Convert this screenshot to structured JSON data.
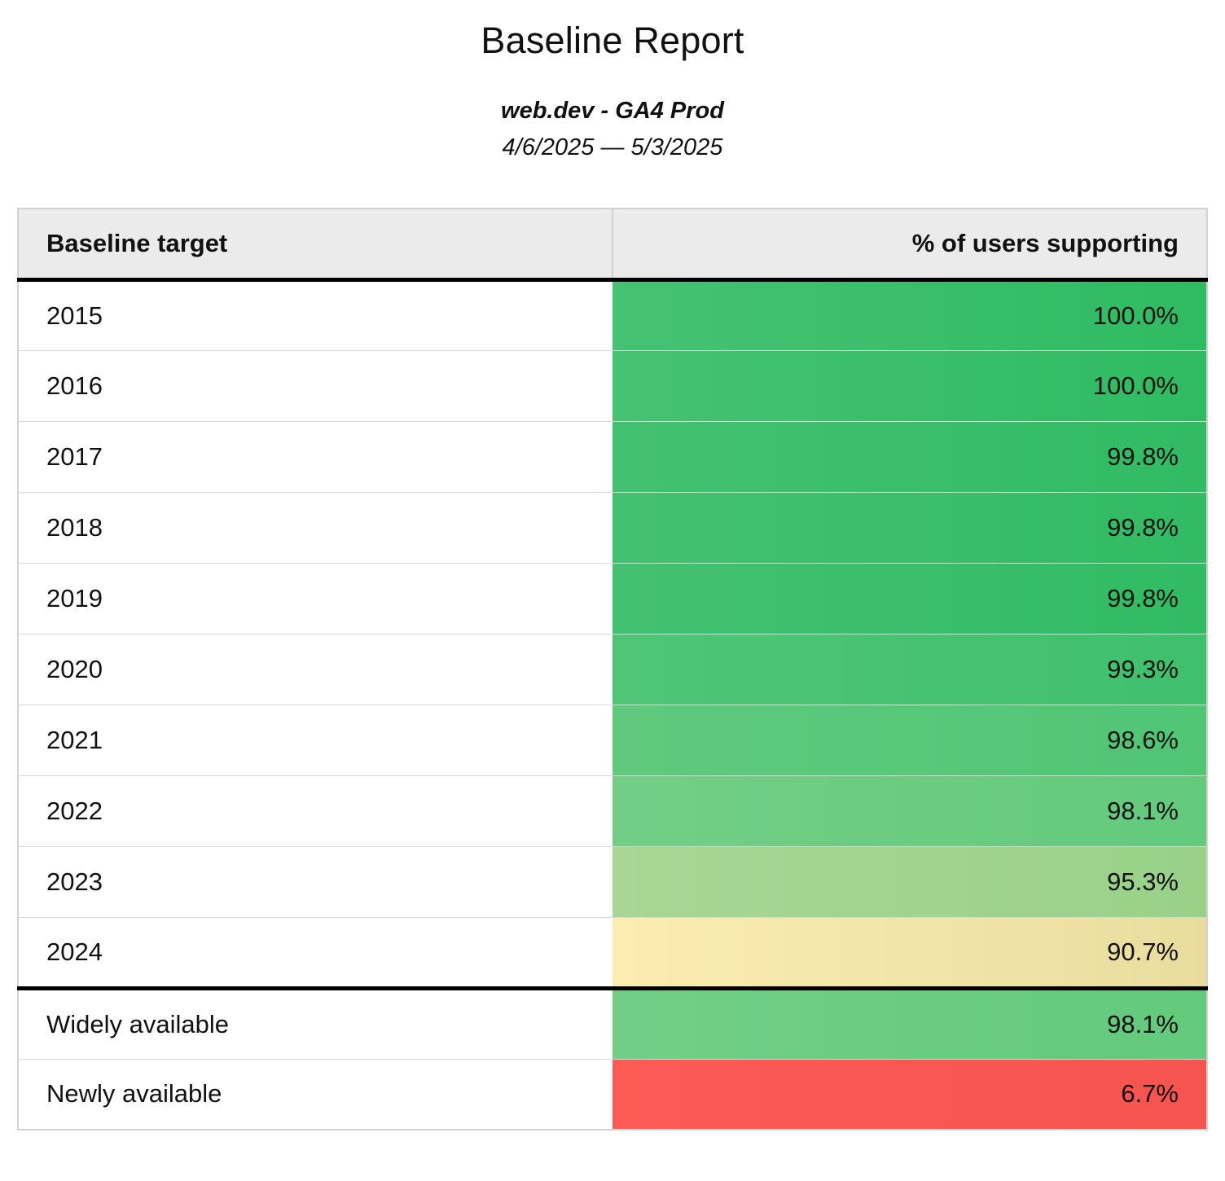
{
  "page": {
    "title": "Baseline Report",
    "subtitle": "web.dev - GA4 Prod",
    "date_range": "4/6/2025 — 5/3/2025"
  },
  "table": {
    "columns": {
      "target": "Baseline target",
      "value": "% of users supporting"
    },
    "rows": [
      {
        "target": "2015",
        "value": "100.0%",
        "color_from": "#45c272",
        "color_to": "#2fbb62"
      },
      {
        "target": "2016",
        "value": "100.0%",
        "color_from": "#45c272",
        "color_to": "#2fbb62"
      },
      {
        "target": "2017",
        "value": "99.8%",
        "color_from": "#43c170",
        "color_to": "#31bb63"
      },
      {
        "target": "2018",
        "value": "99.8%",
        "color_from": "#43c170",
        "color_to": "#31bb63"
      },
      {
        "target": "2019",
        "value": "99.8%",
        "color_from": "#43c170",
        "color_to": "#31bb63"
      },
      {
        "target": "2020",
        "value": "99.3%",
        "color_from": "#50c577",
        "color_to": "#3fc06c"
      },
      {
        "target": "2021",
        "value": "98.6%",
        "color_from": "#60c97d",
        "color_to": "#50c675"
      },
      {
        "target": "2022",
        "value": "98.1%",
        "color_from": "#72ce86",
        "color_to": "#63ca7c"
      },
      {
        "target": "2023",
        "value": "95.3%",
        "color_from": "#a8d694",
        "color_to": "#99d189"
      },
      {
        "target": "2024",
        "value": "90.7%",
        "color_from": "#fcecb0",
        "color_to": "#e9dd9e"
      },
      {
        "target": "Widely available",
        "value": "98.1%",
        "color_from": "#72ce86",
        "color_to": "#63ca7c"
      },
      {
        "target": "Newly available",
        "value": "6.7%",
        "color_from": "#fc5b55",
        "color_to": "#f6544e"
      }
    ],
    "colors": {
      "header_background": "#ebebeb",
      "outer_border": "#d2d2d2",
      "row_separator": "#d8d8d8",
      "section_border": "#000000",
      "text": "#111111"
    }
  },
  "chart_data": {
    "type": "table",
    "title": "Baseline Report",
    "subtitle": "web.dev - GA4 Prod",
    "date_range": "4/6/2025 — 5/3/2025",
    "columns": [
      "Baseline target",
      "% of users supporting"
    ],
    "categories": [
      "2015",
      "2016",
      "2017",
      "2018",
      "2019",
      "2020",
      "2021",
      "2022",
      "2023",
      "2024",
      "Widely available",
      "Newly available"
    ],
    "values": [
      100.0,
      100.0,
      99.8,
      99.8,
      99.8,
      99.3,
      98.6,
      98.1,
      95.3,
      90.7,
      98.1,
      6.7
    ],
    "value_unit": "%",
    "color_scale": "red-yellow-green by value"
  }
}
